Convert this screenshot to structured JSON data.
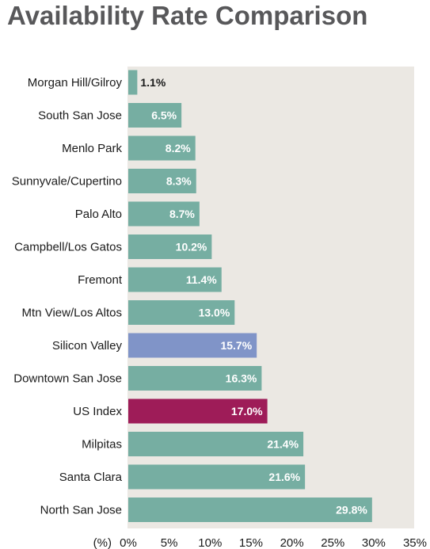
{
  "chart_data": {
    "type": "bar",
    "orientation": "horizontal",
    "title": "Availability Rate Comparison",
    "axis_unit_label": "(%)",
    "categories": [
      "Morgan Hill/Gilroy",
      "South San Jose",
      "Menlo Park",
      "Sunnyvale/Cupertino",
      "Palo Alto",
      "Campbell/Los Gatos",
      "Fremont",
      "Mtn View/Los Altos",
      "Silicon Valley",
      "Downtown San Jose",
      "US Index",
      "Milpitas",
      "Santa Clara",
      "North San Jose"
    ],
    "values": [
      1.1,
      6.5,
      8.2,
      8.3,
      8.7,
      10.2,
      11.4,
      13.0,
      15.7,
      16.3,
      17.0,
      21.4,
      21.6,
      29.8
    ],
    "value_labels": [
      "1.1%",
      "6.5%",
      "8.2%",
      "8.3%",
      "8.7%",
      "10.2%",
      "11.4%",
      "13.0%",
      "15.7%",
      "16.3%",
      "17.0%",
      "21.4%",
      "21.6%",
      "29.8%"
    ],
    "xlim": [
      0,
      35
    ],
    "x_ticks": [
      0,
      5,
      10,
      15,
      20,
      25,
      30,
      35
    ],
    "x_tick_labels": [
      "0%",
      "5%",
      "10%",
      "15%",
      "20%",
      "25%",
      "30%",
      "35%"
    ],
    "grid": false,
    "colors": {
      "default_bar": "#76aea2",
      "Silicon Valley": "#8094c8",
      "US Index": "#9e1c58",
      "plot_background": "#ebe8e3",
      "title": "#58585a",
      "value_label_on_bar": "#ffffff",
      "value_label_outside": "#1a1a1a"
    }
  }
}
